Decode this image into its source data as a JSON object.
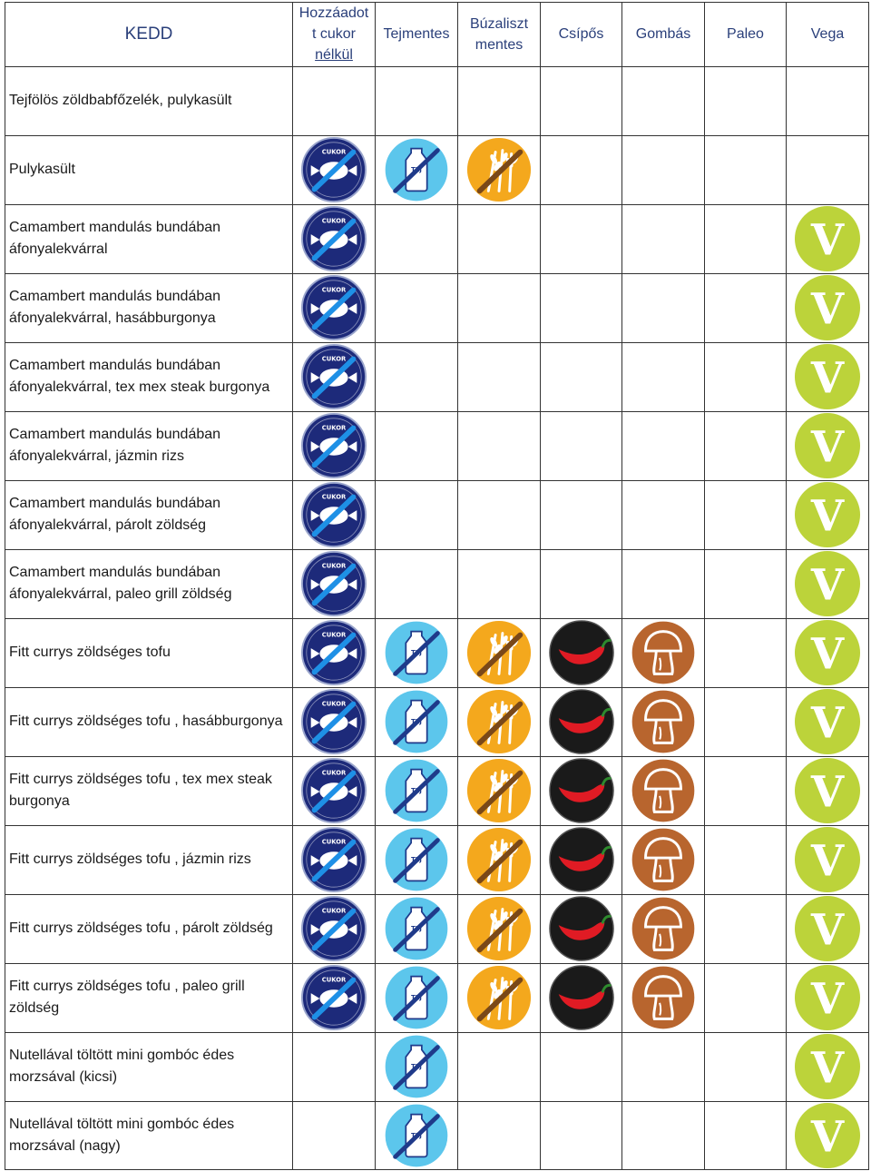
{
  "header": {
    "day": "KEDD",
    "columns": [
      {
        "key": "sugar",
        "label_lines": [
          "Hozzáadot",
          "t cukor",
          "nélkül"
        ]
      },
      {
        "key": "dairy",
        "label_lines": [
          "Tejmentes"
        ]
      },
      {
        "key": "wheat",
        "label_lines": [
          "Búzaliszt",
          "mentes"
        ]
      },
      {
        "key": "spicy",
        "label_lines": [
          "Csípős"
        ]
      },
      {
        "key": "mushroom",
        "label_lines": [
          "Gombás"
        ]
      },
      {
        "key": "paleo",
        "label_lines": [
          "Paleo"
        ]
      },
      {
        "key": "vega",
        "label_lines": [
          "Vega"
        ]
      }
    ]
  },
  "icons": {
    "sugar": {
      "name": "no-sugar-icon",
      "text": "CUKOR",
      "color": "#1d2a7a"
    },
    "dairy": {
      "name": "dairy-free-icon",
      "text": "TEJ",
      "color": "#5cc6ec"
    },
    "wheat": {
      "name": "wheat-free-icon",
      "color": "#f4a81d"
    },
    "spicy": {
      "name": "chili-pepper-icon",
      "color": "#1a1a1a"
    },
    "mushroom": {
      "name": "mushroom-icon",
      "color": "#b8652e"
    },
    "vega": {
      "name": "vegetarian-icon",
      "text": "V",
      "color": "#bcd33a"
    }
  },
  "rows": [
    {
      "lines": [
        "Tejfölös zöldbabfőzelék, pulykasült"
      ],
      "flags": []
    },
    {
      "lines": [
        "Pulykasült"
      ],
      "flags": [
        "sugar",
        "dairy",
        "wheat"
      ]
    },
    {
      "lines": [
        "Camambert mandulás bundában",
        "áfonyalekvárral"
      ],
      "flags": [
        "sugar",
        "vega"
      ]
    },
    {
      "lines": [
        "Camambert mandulás bundában",
        "áfonyalekvárral, hasábburgonya"
      ],
      "flags": [
        "sugar",
        "vega"
      ]
    },
    {
      "lines": [
        "Camambert mandulás bundában",
        "áfonyalekvárral, tex mex steak burgonya"
      ],
      "flags": [
        "sugar",
        "vega"
      ]
    },
    {
      "lines": [
        "Camambert mandulás bundában",
        "áfonyalekvárral, jázmin rizs"
      ],
      "flags": [
        "sugar",
        "vega"
      ]
    },
    {
      "lines": [
        "Camambert mandulás bundában",
        "áfonyalekvárral, párolt zöldség"
      ],
      "flags": [
        "sugar",
        "vega"
      ]
    },
    {
      "lines": [
        "Camambert mandulás bundában",
        "áfonyalekvárral, paleo grill zöldség"
      ],
      "flags": [
        "sugar",
        "vega"
      ]
    },
    {
      "lines": [
        "Fitt currys zöldséges tofu"
      ],
      "flags": [
        "sugar",
        "dairy",
        "wheat",
        "spicy",
        "mushroom",
        "vega"
      ]
    },
    {
      "lines": [
        "Fitt currys zöldséges tofu , hasábburgonya"
      ],
      "flags": [
        "sugar",
        "dairy",
        "wheat",
        "spicy",
        "mushroom",
        "vega"
      ]
    },
    {
      "lines": [
        "Fitt currys zöldséges tofu , tex mex steak",
        "burgonya"
      ],
      "flags": [
        "sugar",
        "dairy",
        "wheat",
        "spicy",
        "mushroom",
        "vega"
      ]
    },
    {
      "lines": [
        "Fitt currys zöldséges tofu , jázmin rizs"
      ],
      "flags": [
        "sugar",
        "dairy",
        "wheat",
        "spicy",
        "mushroom",
        "vega"
      ]
    },
    {
      "lines": [
        "Fitt currys zöldséges tofu , párolt zöldség"
      ],
      "flags": [
        "sugar",
        "dairy",
        "wheat",
        "spicy",
        "mushroom",
        "vega"
      ]
    },
    {
      "lines": [
        "Fitt currys zöldséges tofu , paleo grill",
        "zöldség"
      ],
      "flags": [
        "sugar",
        "dairy",
        "wheat",
        "spicy",
        "mushroom",
        "vega"
      ]
    },
    {
      "lines": [
        "Nutellával töltött mini gombóc édes",
        "morzsával (kicsi)"
      ],
      "flags": [
        "dairy",
        "vega"
      ]
    },
    {
      "lines": [
        "Nutellával töltött mini gombóc édes",
        "morzsával (nagy)"
      ],
      "flags": [
        "dairy",
        "vega"
      ]
    }
  ]
}
